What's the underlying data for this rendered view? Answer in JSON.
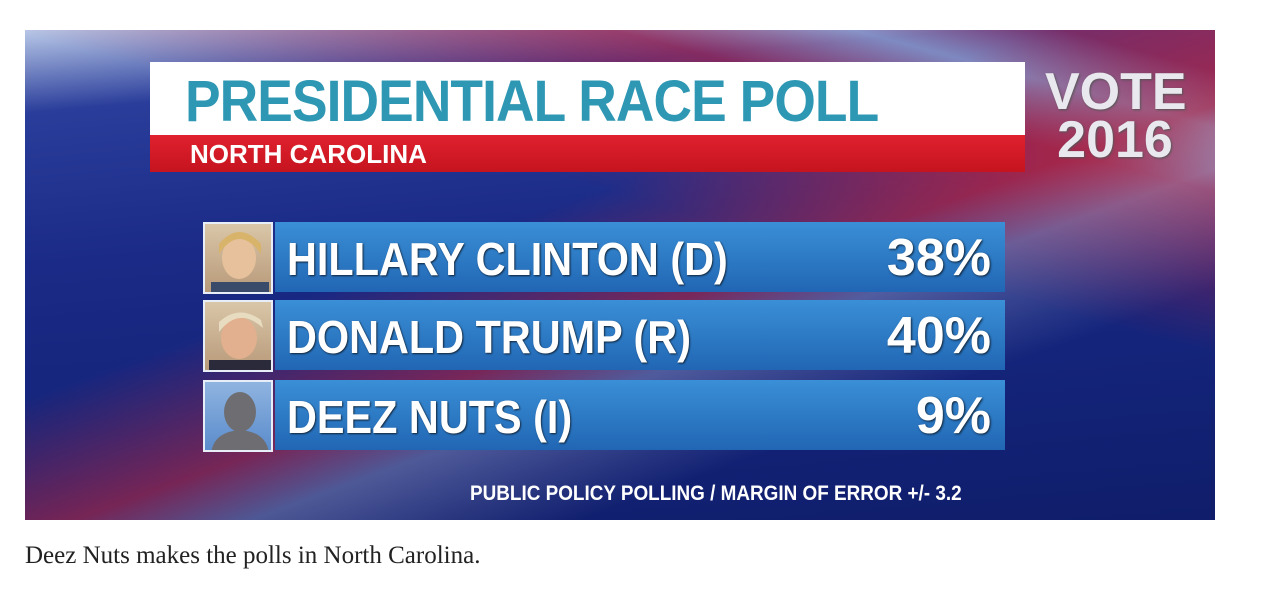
{
  "graphic": {
    "title": "PRESIDENTIAL RACE POLL",
    "subtitle": "NORTH CAROLINA",
    "badge": [
      "VOTE",
      "2016"
    ],
    "rows": [
      {
        "name": "HILLARY CLINTON (D)",
        "percent": "38%"
      },
      {
        "name": "DONALD TRUMP (R)",
        "percent": "40%"
      },
      {
        "name": "DEEZ NUTS (I)",
        "percent": "9%"
      }
    ],
    "footer": "PUBLIC POLICY POLLING / MARGIN OF ERROR +/- 3.2"
  },
  "caption": "Deez Nuts makes the polls in North Carolina."
}
